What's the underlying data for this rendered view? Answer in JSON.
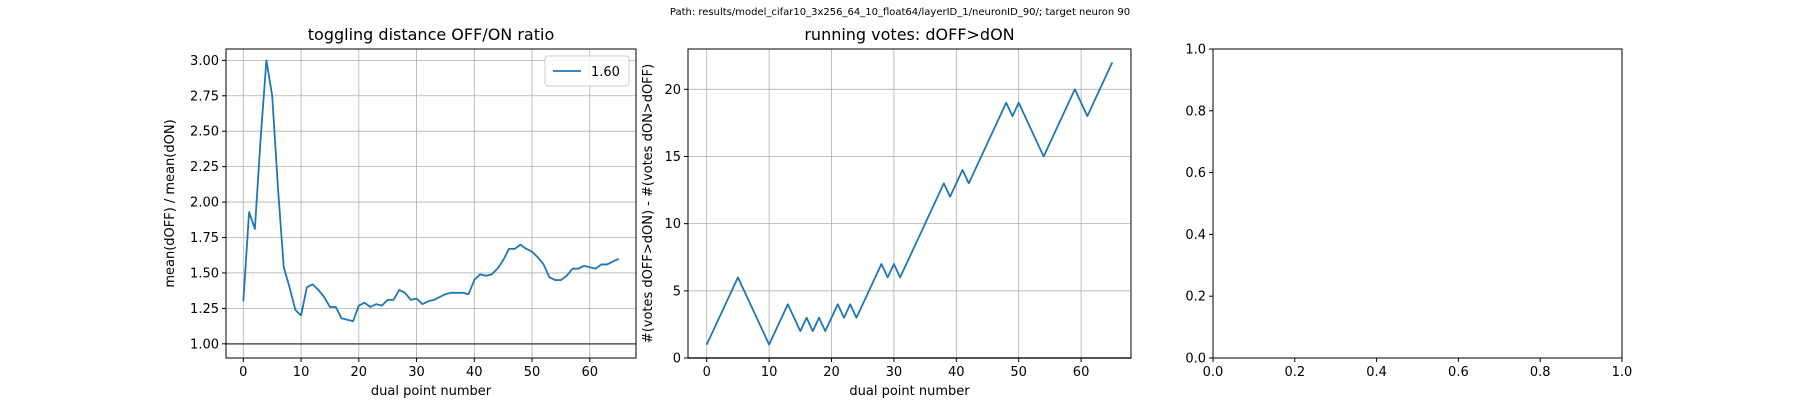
{
  "suptitle": "Path: results/model_cifar10_3x256_64_10_float64/layerID_1/neuronID_90/; target neuron 90",
  "colors": {
    "series": "#1f77b4",
    "refline": "#555555",
    "grid": "#b0b0b0"
  },
  "chart_data": [
    {
      "type": "line",
      "title": "toggling distance OFF/ON ratio",
      "xlabel": "dual point number",
      "ylabel": "mean(dOFF) / mean(dON)",
      "xlim": [
        -3,
        68
      ],
      "ylim": [
        0.9,
        3.08
      ],
      "xticks": [
        0,
        10,
        20,
        30,
        40,
        50,
        60
      ],
      "yticks": [
        1.0,
        1.25,
        1.5,
        1.75,
        2.0,
        2.25,
        2.5,
        2.75,
        3.0
      ],
      "ytick_decimals": 2,
      "grid": true,
      "legend": {
        "position": "top-right",
        "entries": [
          "1.60"
        ]
      },
      "hline": 1.0,
      "series": [
        {
          "name": "1.60",
          "x": [
            0,
            1,
            2,
            3,
            4,
            5,
            6,
            7,
            8,
            9,
            10,
            11,
            12,
            13,
            14,
            15,
            16,
            17,
            18,
            19,
            20,
            21,
            22,
            23,
            24,
            25,
            26,
            27,
            28,
            29,
            30,
            31,
            32,
            33,
            34,
            35,
            36,
            37,
            38,
            39,
            40,
            41,
            42,
            43,
            44,
            45,
            46,
            47,
            48,
            49,
            50,
            51,
            52,
            53,
            54,
            55,
            56,
            57,
            58,
            59,
            60,
            61,
            62,
            63,
            64,
            65
          ],
          "values": [
            1.3,
            1.93,
            1.81,
            2.45,
            3.0,
            2.75,
            2.1,
            1.54,
            1.4,
            1.24,
            1.2,
            1.4,
            1.42,
            1.38,
            1.33,
            1.26,
            1.26,
            1.18,
            1.17,
            1.16,
            1.27,
            1.29,
            1.26,
            1.28,
            1.27,
            1.31,
            1.31,
            1.38,
            1.36,
            1.31,
            1.32,
            1.28,
            1.3,
            1.31,
            1.33,
            1.35,
            1.36,
            1.36,
            1.36,
            1.35,
            1.45,
            1.49,
            1.48,
            1.49,
            1.53,
            1.59,
            1.67,
            1.67,
            1.7,
            1.67,
            1.65,
            1.61,
            1.56,
            1.47,
            1.45,
            1.45,
            1.48,
            1.53,
            1.53,
            1.55,
            1.54,
            1.53,
            1.56,
            1.56,
            1.58,
            1.6
          ]
        }
      ]
    },
    {
      "type": "line",
      "title": "running votes: dOFF>dON",
      "xlabel": "dual point number",
      "ylabel": "#(votes dOFF>dON) - #(votes dON>dOFF)",
      "xlim": [
        -3,
        68
      ],
      "ylim": [
        0,
        23
      ],
      "xticks": [
        0,
        10,
        20,
        30,
        40,
        50,
        60
      ],
      "yticks": [
        0,
        5,
        10,
        15,
        20
      ],
      "ytick_decimals": 0,
      "grid": true,
      "hline": 0,
      "series": [
        {
          "x": [
            0,
            5,
            10,
            13,
            15,
            16,
            17,
            18,
            19,
            21,
            22,
            23,
            24,
            28,
            29,
            30,
            31,
            38,
            39,
            41,
            42,
            48,
            49,
            50,
            54,
            59,
            61,
            65
          ],
          "values": [
            1,
            6,
            1,
            4,
            2,
            3,
            2,
            3,
            2,
            4,
            3,
            4,
            3,
            7,
            6,
            7,
            6,
            13,
            12,
            14,
            13,
            19,
            18,
            19,
            15,
            20,
            18,
            22
          ]
        }
      ]
    },
    {
      "type": "line",
      "title": "",
      "xlabel": "",
      "ylabel": "",
      "xlim": [
        0,
        1
      ],
      "ylim": [
        0,
        1
      ],
      "xticks": [
        0.0,
        0.2,
        0.4,
        0.6,
        0.8,
        1.0
      ],
      "yticks": [
        0.0,
        0.2,
        0.4,
        0.6,
        0.8,
        1.0
      ],
      "ytick_decimals": 1,
      "xtick_decimals": 1,
      "grid": false,
      "series": []
    }
  ]
}
